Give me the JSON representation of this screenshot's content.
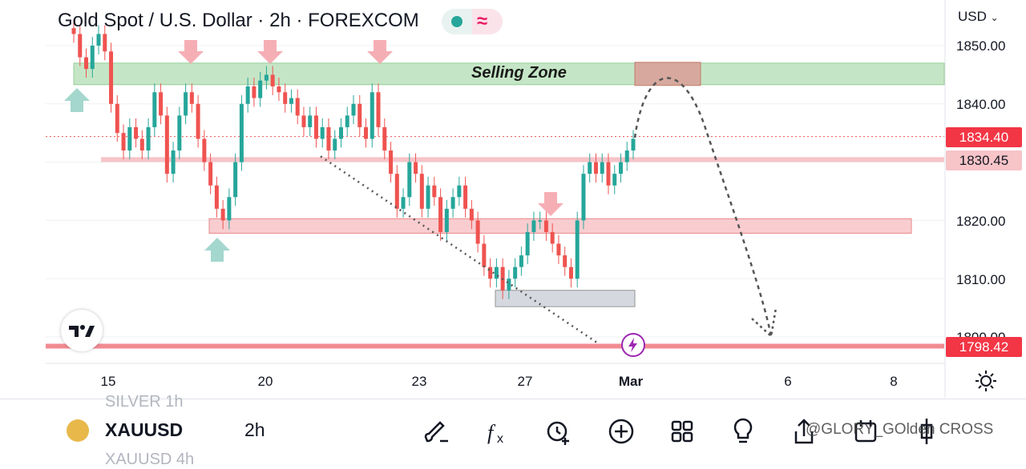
{
  "header": {
    "title": "Gold Spot / U.S. Dollar · 2h · FOREXCOM",
    "indicator_pill": [
      "live-dot-icon",
      "approx-wave-icon"
    ]
  },
  "price_axis": {
    "currency": "USD",
    "labels": [
      "1850.00",
      "1840.00",
      "1820.00",
      "1810.00",
      "1800.00"
    ],
    "current_price": "1834.40",
    "line_price": "1830.45",
    "support_price": "1798.42"
  },
  "time_axis": [
    "15",
    "20",
    "23",
    "27",
    "Mar",
    "6",
    "8"
  ],
  "annotations": {
    "selling_zone": "Selling Zone"
  },
  "colors": {
    "up": "#26a69a",
    "down": "#ef5350",
    "selling_zone": "#b7e1b9",
    "resistance_zone": "#f8c5c8",
    "support_zone": "#d1d4dc",
    "accent": "#e91e63"
  },
  "bottom_bar": {
    "ghost_top": "SILVER      1h",
    "symbol": "XAUUSD",
    "timeframe": "2h",
    "ghost_bottom": "XAUUSD      4h",
    "tools": [
      "brush-icon",
      "fx-icon",
      "alarm-add-icon",
      "plus-circle-icon",
      "grid-icon",
      "lightbulb-icon",
      "share-icon",
      "calendar-icon",
      "candle-settings-icon"
    ],
    "watermark": "@GLORY_GOlden CROSS"
  },
  "chart_data": {
    "type": "candlestick",
    "title": "Gold Spot / U.S. Dollar · 2h · FOREXCOM",
    "ylabel": "USD",
    "xlabel": "",
    "ylim": [
      1797,
      1853
    ],
    "x_ticks": [
      "15",
      "20",
      "23",
      "27",
      "Mar",
      "6",
      "8"
    ],
    "y_ticks": [
      1850,
      1840,
      1830,
      1820,
      1810,
      1800
    ],
    "last_price": 1834.4,
    "horizontal_lines": [
      1830.45,
      1798.42
    ],
    "zones": [
      {
        "name": "Selling Zone",
        "from": 1843.3,
        "to": 1847.0
      },
      {
        "name": "resistance",
        "from": 1817.8,
        "to": 1820.3
      },
      {
        "name": "support",
        "from": 1805.2,
        "to": 1808.0
      }
    ],
    "closes": [
      1852,
      1848,
      1846,
      1850,
      1852,
      1849,
      1840,
      1835,
      1832,
      1836,
      1834,
      1832,
      1836,
      1842,
      1838,
      1828,
      1832,
      1838,
      1842,
      1840,
      1834,
      1830,
      1826,
      1822,
      1820,
      1824,
      1830,
      1840,
      1843,
      1841,
      1844,
      1845,
      1843,
      1842,
      1840,
      1841,
      1838,
      1836,
      1838,
      1834,
      1836,
      1832,
      1834,
      1836,
      1838,
      1840,
      1836,
      1834,
      1842,
      1836,
      1832,
      1828,
      1822,
      1824,
      1830,
      1828,
      1822,
      1826,
      1824,
      1818,
      1822,
      1824,
      1826,
      1822,
      1820,
      1816,
      1812,
      1810,
      1812,
      1808,
      1810,
      1812,
      1814,
      1818,
      1820,
      1820,
      1818,
      1816,
      1814,
      1812,
      1810,
      1820,
      1828,
      1830,
      1828,
      1830,
      1826,
      1828,
      1830,
      1832,
      1834
    ]
  }
}
